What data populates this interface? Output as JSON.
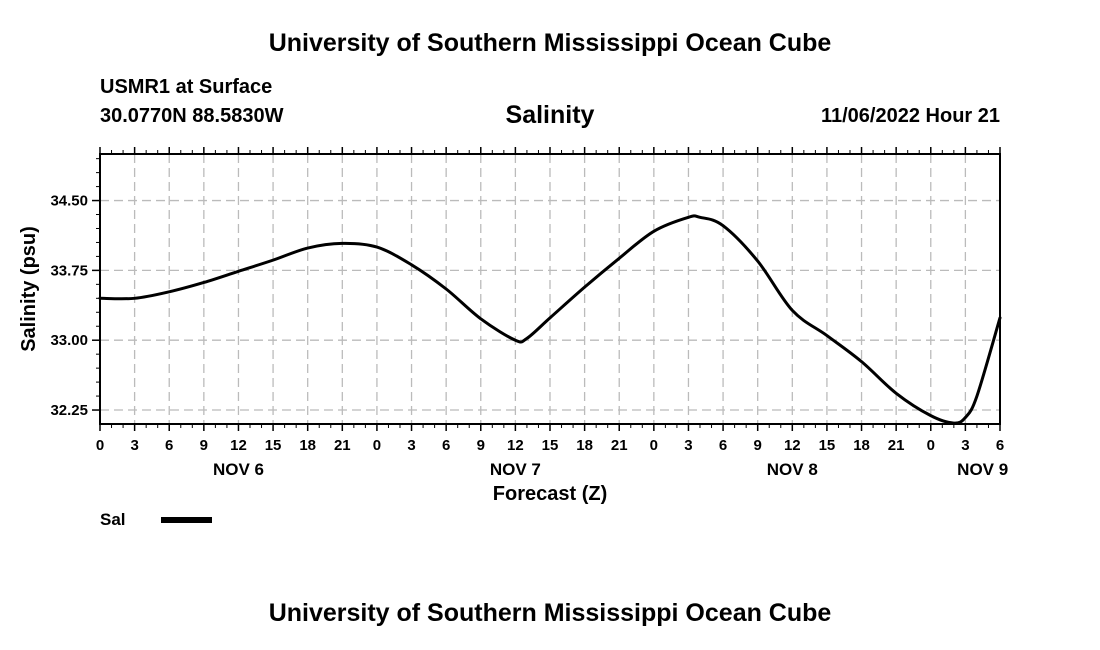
{
  "header": {
    "title": "University of Southern Mississippi Ocean Cube",
    "station": "USMR1 at Surface",
    "coordinates": "30.0770N  88.5830W",
    "parameter": "Salinity",
    "datetime": "11/06/2022 Hour 21"
  },
  "footer": {
    "title": "University of Southern Mississippi Ocean Cube"
  },
  "legend": {
    "series_label": "Sal",
    "line_color": "#000000"
  },
  "chart_data": {
    "type": "line",
    "title": "Salinity",
    "xlabel": "Forecast (Z)",
    "ylabel": "Salinity (psu)",
    "x_unit": "hours since Nov 6 00Z",
    "xlim": [
      0,
      78
    ],
    "ylim": [
      32.1,
      35.0
    ],
    "y_ticks": [
      32.25,
      33.0,
      33.75,
      34.5
    ],
    "y_tick_labels": [
      "32.25",
      "33.00",
      "33.75",
      "34.50"
    ],
    "y_minor_step": 0.15,
    "x_ticks": [
      0,
      3,
      6,
      9,
      12,
      15,
      18,
      21,
      24,
      27,
      30,
      33,
      36,
      39,
      42,
      45,
      48,
      51,
      54,
      57,
      60,
      63,
      66,
      69,
      72,
      75,
      78
    ],
    "x_tick_labels": [
      "0",
      "3",
      "6",
      "9",
      "12",
      "15",
      "18",
      "21",
      "0",
      "3",
      "6",
      "9",
      "12",
      "15",
      "18",
      "21",
      "0",
      "3",
      "6",
      "9",
      "12",
      "15",
      "18",
      "21",
      "0",
      "3",
      "6"
    ],
    "date_labels": [
      {
        "x": 12,
        "label": "NOV 6"
      },
      {
        "x": 36,
        "label": "NOV 7"
      },
      {
        "x": 60,
        "label": "NOV 8"
      },
      {
        "x": 76.5,
        "label": "NOV 9"
      }
    ],
    "grid": true,
    "series": [
      {
        "name": "Sal",
        "color": "#000000",
        "x": [
          0,
          3,
          6,
          9,
          12,
          15,
          18,
          21,
          24,
          27,
          30,
          33,
          36,
          37,
          39,
          42,
          45,
          48,
          51,
          52,
          54,
          57,
          60,
          63,
          66,
          69,
          72,
          74,
          75,
          76,
          78
        ],
        "y": [
          33.45,
          33.45,
          33.52,
          33.62,
          33.74,
          33.86,
          33.99,
          34.04,
          34.0,
          33.81,
          33.55,
          33.23,
          33.0,
          33.02,
          33.24,
          33.57,
          33.88,
          34.17,
          34.32,
          34.32,
          34.23,
          33.85,
          33.32,
          33.05,
          32.77,
          32.43,
          32.19,
          32.11,
          32.17,
          32.4,
          33.24
        ]
      }
    ]
  }
}
